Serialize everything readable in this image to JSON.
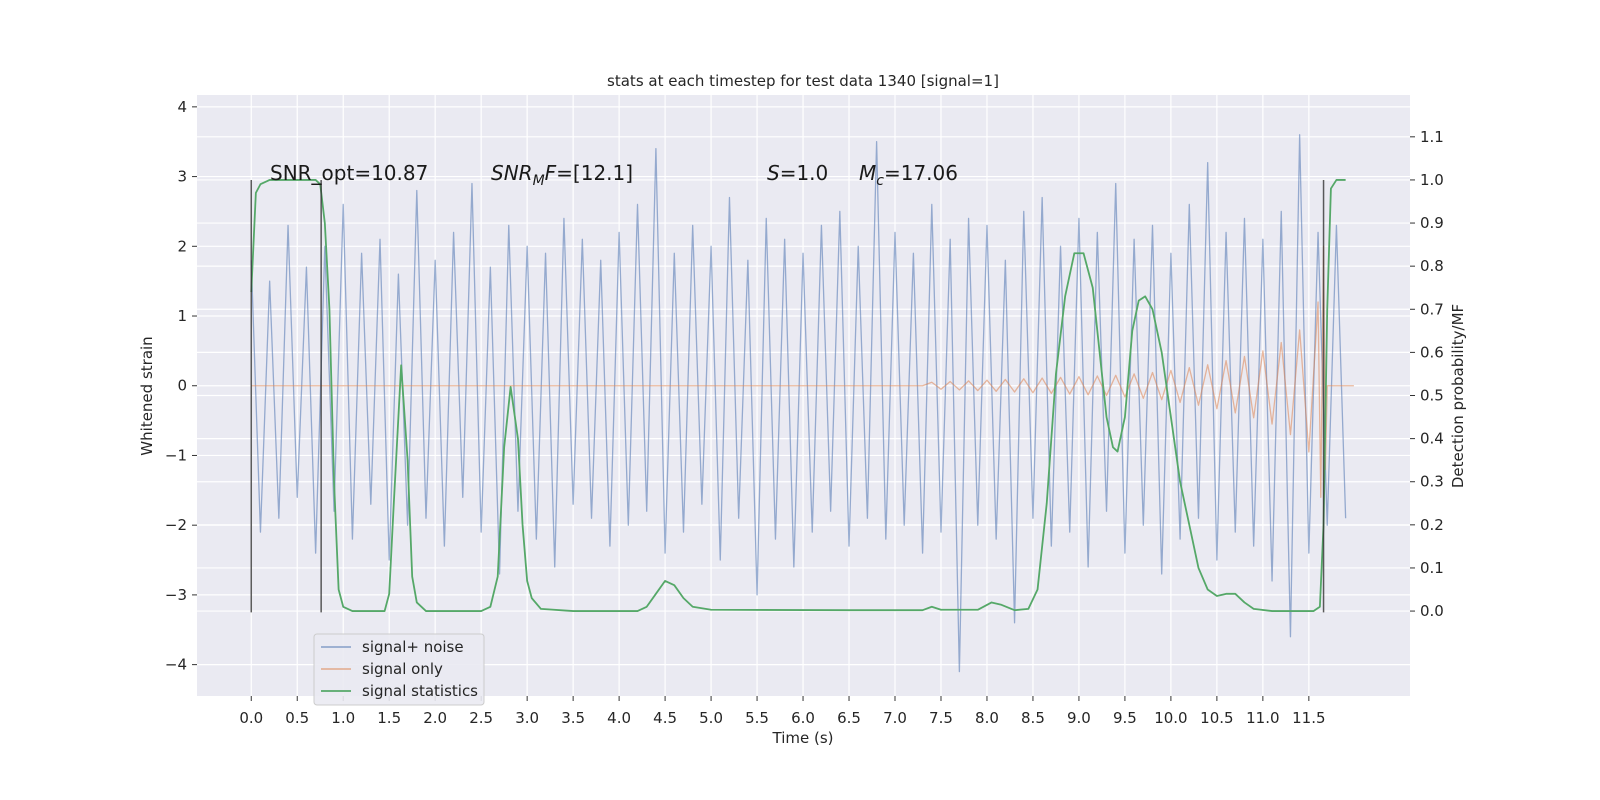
{
  "chart_data": {
    "type": "line",
    "title": "stats at each timestep for test data 1340 [signal=1]",
    "xlabel": "Time (s)",
    "ylabel": "Whitened strain",
    "y2label": "Detection probability/MF",
    "xlim": [
      -0.59,
      12.6
    ],
    "ylim": [
      -4.45,
      4.17
    ],
    "y2lim": [
      -0.197,
      1.197
    ],
    "xticks": [
      {
        "value": 0,
        "label": "0.0"
      },
      0.5,
      {
        "value": 1,
        "label": "1.0"
      },
      1.5,
      {
        "value": 2,
        "label": "2.0"
      },
      2.5,
      {
        "value": 3,
        "label": "3.0"
      },
      3.5,
      {
        "value": 4,
        "label": "4.0"
      },
      4.5,
      {
        "value": 5,
        "label": "5.0"
      },
      5.5,
      {
        "value": 6,
        "label": "6.0"
      },
      6.5,
      {
        "value": 7,
        "label": "7.0"
      },
      7.5,
      {
        "value": 8,
        "label": "8.0"
      },
      8.5,
      {
        "value": 9,
        "label": "9.0"
      },
      9.5,
      {
        "value": 10,
        "label": "10.0"
      },
      10.5,
      {
        "value": 11,
        "label": "11.0"
      },
      11.5
    ],
    "yticks": [
      {
        "value": -4,
        "label": "−4"
      },
      {
        "value": -3,
        "label": "−3"
      },
      {
        "value": -2,
        "label": "−2"
      },
      {
        "value": -1,
        "label": "−1"
      },
      0,
      1,
      2,
      3,
      4
    ],
    "y2ticks": [
      {
        "value": 0,
        "label": "0.0"
      },
      0.1,
      0.2,
      0.3,
      0.4,
      0.5,
      0.6,
      0.7,
      0.8,
      0.9,
      {
        "value": 1,
        "label": "1.0"
      },
      1.1
    ],
    "grid": true,
    "legend": "lower left",
    "annotations": [
      [
        "SNR_opt=10.87"
      ],
      [
        "SNR",
        "M",
        "F",
        "=[12.1]"
      ],
      [
        "S",
        "=1.0"
      ],
      [
        "M",
        "c",
        "=17.06"
      ]
    ],
    "vlines": {
      "x": [
        0,
        0.76,
        11.66
      ],
      "ymin": -3.25,
      "ymax": 2.95
    },
    "series": [
      {
        "name": "signal+ noise",
        "color": "#4c72b0",
        "x": [
          0.0,
          0.1,
          0.2,
          0.3,
          0.4,
          0.5,
          0.6,
          0.7,
          0.8,
          0.9,
          1.0,
          1.1,
          1.2,
          1.3,
          1.4,
          1.5,
          1.6,
          1.7,
          1.8,
          1.9,
          2.0,
          2.1,
          2.2,
          2.3,
          2.4,
          2.5,
          2.6,
          2.7,
          2.8,
          2.9,
          3.0,
          3.1,
          3.2,
          3.3,
          3.4,
          3.5,
          3.6,
          3.7,
          3.8,
          3.9,
          4.0,
          4.1,
          4.2,
          4.3,
          4.4,
          4.5,
          4.6,
          4.7,
          4.8,
          4.9,
          5.0,
          5.1,
          5.2,
          5.3,
          5.4,
          5.5,
          5.6,
          5.7,
          5.8,
          5.9,
          6.0,
          6.1,
          6.2,
          6.3,
          6.4,
          6.5,
          6.6,
          6.7,
          6.8,
          6.9,
          7.0,
          7.1,
          7.2,
          7.3,
          7.4,
          7.5,
          7.6,
          7.7,
          7.8,
          7.9,
          8.0,
          8.1,
          8.2,
          8.3,
          8.4,
          8.5,
          8.6,
          8.7,
          8.8,
          8.9,
          9.0,
          9.1,
          9.2,
          9.3,
          9.4,
          9.5,
          9.6,
          9.7,
          9.8,
          9.9,
          10.0,
          10.1,
          10.2,
          10.3,
          10.4,
          10.5,
          10.6,
          10.7,
          10.8,
          10.9,
          11.0,
          11.1,
          11.2,
          11.3,
          11.4,
          11.5,
          11.6,
          11.7,
          11.8,
          11.9
        ],
        "values": [
          1.8,
          -2.1,
          1.5,
          -1.9,
          2.3,
          -1.6,
          1.7,
          -2.4,
          2.0,
          -1.8,
          2.6,
          -2.2,
          1.9,
          -1.7,
          2.1,
          -2.5,
          1.6,
          -2.0,
          2.8,
          -1.9,
          1.8,
          -2.3,
          2.2,
          -1.6,
          2.9,
          -2.1,
          1.7,
          -2.7,
          2.3,
          -1.8,
          2.0,
          -2.2,
          1.9,
          -2.6,
          2.4,
          -1.7,
          2.1,
          -1.9,
          1.8,
          -2.3,
          2.2,
          -2.0,
          2.6,
          -1.8,
          3.4,
          -2.4,
          1.9,
          -2.1,
          2.3,
          -1.7,
          2.0,
          -2.5,
          2.7,
          -1.9,
          1.8,
          -3.0,
          2.4,
          -2.2,
          2.1,
          -2.6,
          1.9,
          -2.1,
          2.3,
          -1.8,
          2.5,
          -2.3,
          2.0,
          -1.9,
          3.5,
          -2.2,
          2.2,
          -2.0,
          1.9,
          -2.4,
          2.6,
          -2.1,
          2.1,
          -4.1,
          2.4,
          -2.0,
          2.3,
          -2.2,
          1.8,
          -3.4,
          2.5,
          -1.9,
          2.7,
          -2.3,
          2.0,
          -2.1,
          2.4,
          -2.6,
          2.2,
          -1.8,
          2.9,
          -2.4,
          2.1,
          -2.0,
          2.3,
          -2.7,
          1.9,
          -2.2,
          2.6,
          -1.9,
          3.2,
          -2.5,
          2.2,
          -2.1,
          2.4,
          -2.3,
          2.1,
          -2.8,
          2.5,
          -3.6,
          3.6,
          -2.4,
          2.2,
          -2.0,
          2.3,
          -1.9
        ]
      },
      {
        "name": "signal only",
        "color": "#dd8452",
        "x": [
          0,
          7.3,
          7.4,
          7.5,
          7.6,
          7.7,
          7.8,
          7.9,
          8.0,
          8.1,
          8.2,
          8.3,
          8.4,
          8.5,
          8.6,
          8.7,
          8.8,
          8.9,
          9.0,
          9.1,
          9.2,
          9.3,
          9.4,
          9.5,
          9.6,
          9.7,
          9.8,
          9.9,
          10.0,
          10.1,
          10.2,
          10.3,
          10.4,
          10.5,
          10.6,
          10.7,
          10.8,
          10.9,
          11.0,
          11.1,
          11.2,
          11.3,
          11.4,
          11.5,
          11.6,
          11.63,
          11.66,
          11.68,
          11.7,
          11.99
        ],
        "values": [
          0,
          0,
          0.05,
          -0.05,
          0.06,
          -0.06,
          0.07,
          -0.07,
          0.08,
          -0.08,
          0.09,
          -0.09,
          0.1,
          -0.1,
          0.11,
          -0.11,
          0.12,
          -0.12,
          0.13,
          -0.13,
          0.14,
          -0.14,
          0.15,
          -0.16,
          0.17,
          -0.18,
          0.19,
          -0.2,
          0.22,
          -0.24,
          0.26,
          -0.28,
          0.3,
          -0.33,
          0.36,
          -0.39,
          0.42,
          -0.46,
          0.5,
          -0.55,
          0.62,
          -0.7,
          0.8,
          -0.95,
          1.2,
          -1.6,
          2.0,
          -1.2,
          0,
          0
        ]
      },
      {
        "name": "signal statistics",
        "color": "#55a868",
        "axis": "y2",
        "x": [
          0,
          0.05,
          0.1,
          0.2,
          0.7,
          0.75,
          0.8,
          0.85,
          0.9,
          0.95,
          1.0,
          1.1,
          1.45,
          1.5,
          1.55,
          1.63,
          1.7,
          1.75,
          1.8,
          1.9,
          2.5,
          2.6,
          2.68,
          2.75,
          2.82,
          2.9,
          2.95,
          3.0,
          3.05,
          3.15,
          3.5,
          4.2,
          4.3,
          4.4,
          4.5,
          4.6,
          4.7,
          4.8,
          5.0,
          6.5,
          7.3,
          7.4,
          7.5,
          7.9,
          8.05,
          8.15,
          8.3,
          8.45,
          8.55,
          8.65,
          8.75,
          8.85,
          8.95,
          9.05,
          9.15,
          9.25,
          9.3,
          9.37,
          9.42,
          9.5,
          9.58,
          9.65,
          9.72,
          9.8,
          9.9,
          10.0,
          10.1,
          10.2,
          10.3,
          10.4,
          10.5,
          10.6,
          10.7,
          10.8,
          10.9,
          11.1,
          11.55,
          11.62,
          11.66,
          11.7,
          11.74,
          11.8,
          11.9
        ],
        "values": [
          0.74,
          0.97,
          0.99,
          1.0,
          1.0,
          0.99,
          0.9,
          0.7,
          0.3,
          0.05,
          0.01,
          0.0,
          0.0,
          0.04,
          0.25,
          0.57,
          0.35,
          0.08,
          0.02,
          0.0,
          0.0,
          0.01,
          0.08,
          0.38,
          0.52,
          0.4,
          0.2,
          0.07,
          0.03,
          0.005,
          0.0,
          0.0,
          0.01,
          0.04,
          0.07,
          0.06,
          0.03,
          0.01,
          0.003,
          0.002,
          0.002,
          0.01,
          0.003,
          0.003,
          0.02,
          0.015,
          0.002,
          0.005,
          0.05,
          0.25,
          0.55,
          0.73,
          0.83,
          0.83,
          0.75,
          0.55,
          0.45,
          0.38,
          0.37,
          0.45,
          0.65,
          0.72,
          0.73,
          0.7,
          0.6,
          0.45,
          0.3,
          0.2,
          0.1,
          0.05,
          0.035,
          0.04,
          0.04,
          0.02,
          0.005,
          0.0,
          0.0,
          0.01,
          0.2,
          0.7,
          0.98,
          1.0,
          1.0
        ]
      }
    ]
  }
}
